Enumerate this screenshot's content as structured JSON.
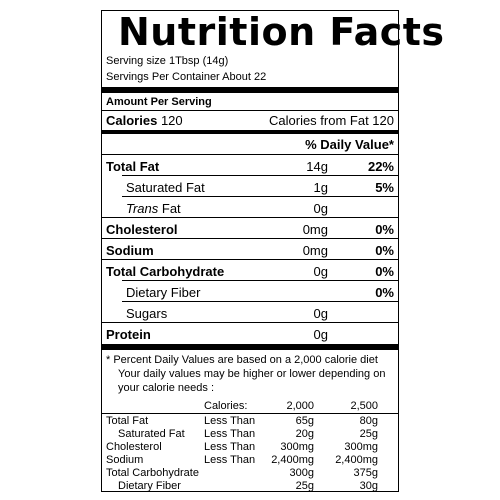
{
  "title": "Nutrition Facts",
  "serving_size": "Serving size 1Tbsp (14g)",
  "servings_per_container": "Servings Per Container About 22",
  "amount_per_serving": "Amount Per Serving",
  "calories": {
    "label": "Calories",
    "value": "120",
    "from_fat": "Calories from Fat 120"
  },
  "daily_value_header": "% Daily Value*",
  "nutrients": [
    {
      "name": "Total Fat",
      "amount": "14g",
      "dv": "22%"
    },
    {
      "name": "Saturated Fat",
      "amount": "1g",
      "dv": "5%"
    },
    {
      "name": "Trans",
      "name_suffix": "Fat",
      "amount": "0g",
      "dv": ""
    },
    {
      "name": "Cholesterol",
      "amount": "0mg",
      "dv": "0%"
    },
    {
      "name": "Sodium",
      "amount": "0mg",
      "dv": "0%"
    },
    {
      "name": "Total Carbohydrate",
      "amount": "0g",
      "dv": "0%"
    },
    {
      "name": "Dietary Fiber",
      "amount": "",
      "dv": "0%"
    },
    {
      "name": "Sugars",
      "amount": "0g",
      "dv": ""
    },
    {
      "name": "Protein",
      "amount": "0g",
      "dv": ""
    }
  ],
  "footnote": [
    "* Percent Daily Values are based on a 2,000 calorie diet",
    "Your daily values may be higher or lower depending on",
    "your calorie needs :"
  ],
  "reference_table": {
    "header": {
      "label": "Calories:",
      "col1": "2,000",
      "col2": "2,500"
    },
    "rows": [
      {
        "name": "Total Fat",
        "qualifier": "Less Than",
        "col1": "65g",
        "col2": "80g"
      },
      {
        "name": "Saturated Fat",
        "qualifier": "Less Than",
        "col1": "20g",
        "col2": "25g"
      },
      {
        "name": "Cholesterol",
        "qualifier": "Less Than",
        "col1": "300mg",
        "col2": "300mg"
      },
      {
        "name": "Sodium",
        "qualifier": "Less Than",
        "col1": "2,400mg",
        "col2": "2,400mg"
      },
      {
        "name": "Total Carbohydrate",
        "qualifier": "",
        "col1": "300g",
        "col2": "375g"
      },
      {
        "name": "Dietary Fiber",
        "qualifier": "",
        "col1": "25g",
        "col2": "30g"
      }
    ]
  }
}
